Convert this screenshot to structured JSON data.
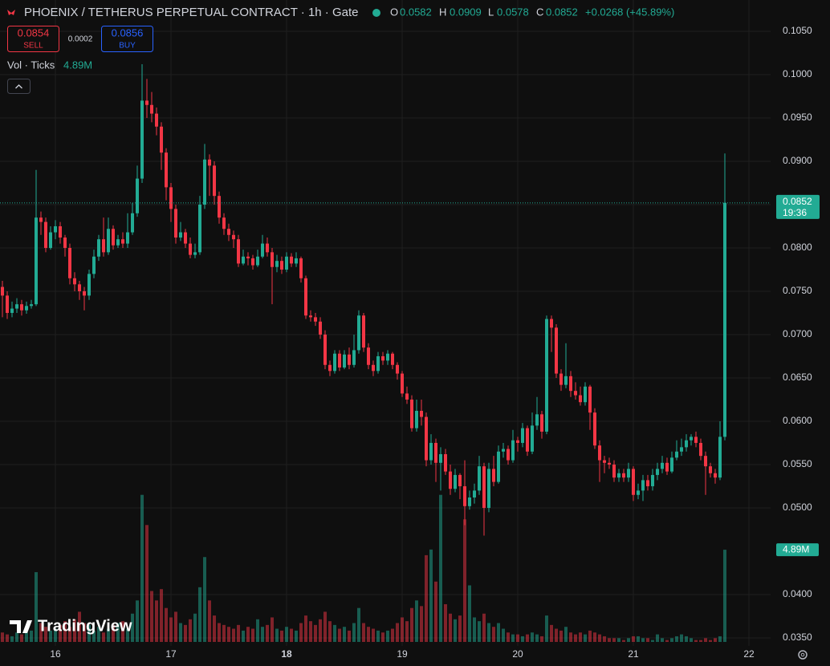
{
  "chart_data": {
    "type": "candlestick",
    "title": "PHOENIX / TETHERUS PERPETUAL CONTRACT · 1h · Gate",
    "ohlc_labels": [
      "O",
      "H",
      "L",
      "C"
    ],
    "change": "+0.0268 (+45.89%)",
    "sell": {
      "price": 0.0854,
      "label": "SELL"
    },
    "spread": 0.0002,
    "buy": {
      "price": 0.0856,
      "label": "BUY"
    },
    "volume_title": "Vol · Ticks",
    "volume_last_label": "4.89M",
    "countdown": "19:36",
    "watermark": "TradingView",
    "up_color": "#22ab94",
    "down_color": "#f23645",
    "grid": true,
    "xlim": [
      -0.5,
      159.5
    ],
    "xticks": [
      {
        "value": 11,
        "label": "16"
      },
      {
        "value": 35,
        "label": "17"
      },
      {
        "value": 59,
        "label": "18"
      },
      {
        "value": 83,
        "label": "19"
      },
      {
        "value": 107,
        "label": "20"
      },
      {
        "value": 131,
        "label": "21"
      },
      {
        "value": 155,
        "label": "22"
      }
    ],
    "ylim": [
      0.03407,
      0.10861
    ],
    "yticks": [
      {
        "value": 0.105,
        "label": "0.1050"
      },
      {
        "value": 0.1,
        "label": "0.1000"
      },
      {
        "value": 0.095,
        "label": "0.0950"
      },
      {
        "value": 0.09,
        "label": "0.0900"
      },
      {
        "value": 0.085,
        "label": "0.0850"
      },
      {
        "value": 0.08,
        "label": "0.0800"
      },
      {
        "value": 0.075,
        "label": "0.0750"
      },
      {
        "value": 0.07,
        "label": "0.0700"
      },
      {
        "value": 0.065,
        "label": "0.0650"
      },
      {
        "value": 0.06,
        "label": "0.0600"
      },
      {
        "value": 0.055,
        "label": "0.0550"
      },
      {
        "value": 0.05,
        "label": "0.0500"
      },
      {
        "value": 0.04,
        "label": "0.0400"
      },
      {
        "value": 0.035,
        "label": "0.0350"
      }
    ],
    "open": [
      0.0755,
      0.0745,
      0.0725,
      0.073,
      0.0735,
      0.0728,
      0.0733,
      0.0735,
      0.0835,
      0.083,
      0.08,
      0.0818,
      0.0825,
      0.0812,
      0.08,
      0.0765,
      0.0758,
      0.075,
      0.0745,
      0.077,
      0.079,
      0.081,
      0.0795,
      0.0822,
      0.0803,
      0.081,
      0.0805,
      0.0818,
      0.084,
      0.088,
      0.097,
      0.0965,
      0.0955,
      0.094,
      0.091,
      0.087,
      0.0845,
      0.0812,
      0.0818,
      0.0805,
      0.0792,
      0.0795,
      0.085,
      0.0902,
      0.0895,
      0.086,
      0.0835,
      0.0822,
      0.0815,
      0.081,
      0.0782,
      0.079,
      0.0788,
      0.078,
      0.079,
      0.0805,
      0.0795,
      0.0778,
      0.0785,
      0.0775,
      0.079,
      0.0782,
      0.0788,
      0.0765,
      0.0722,
      0.072,
      0.0715,
      0.07,
      0.0665,
      0.0658,
      0.0678,
      0.0662,
      0.0677,
      0.0665,
      0.0682,
      0.0722,
      0.0685,
      0.0665,
      0.0658,
      0.0675,
      0.067,
      0.0678,
      0.0665,
      0.0655,
      0.0632,
      0.0625,
      0.0592,
      0.0612,
      0.0605,
      0.0555,
      0.0575,
      0.0552,
      0.0562,
      0.0542,
      0.0522,
      0.0538,
      0.0525,
      0.0502,
      0.0512,
      0.052,
      0.0548,
      0.05,
      0.0545,
      0.053,
      0.0565,
      0.0568,
      0.0555,
      0.0578,
      0.0575,
      0.0592,
      0.0565,
      0.0595,
      0.0608,
      0.0588,
      0.0718,
      0.0708,
      0.0655,
      0.0642,
      0.0652,
      0.0635,
      0.063,
      0.0622,
      0.064,
      0.061,
      0.0572,
      0.0555,
      0.0552,
      0.055,
      0.0535,
      0.054,
      0.0535,
      0.0545,
      0.0515,
      0.052,
      0.0532,
      0.0525,
      0.0538,
      0.0545,
      0.0552,
      0.0542,
      0.0558,
      0.0565,
      0.057,
      0.0578,
      0.0582,
      0.0575,
      0.056,
      0.0548,
      0.054,
      0.0535,
      0.0582
    ],
    "high": [
      0.0762,
      0.075,
      0.0738,
      0.0742,
      0.074,
      0.0738,
      0.074,
      0.089,
      0.0842,
      0.0835,
      0.0825,
      0.0832,
      0.083,
      0.0815,
      0.0805,
      0.0772,
      0.0762,
      0.0755,
      0.0775,
      0.0798,
      0.0815,
      0.0835,
      0.0835,
      0.0826,
      0.0815,
      0.0818,
      0.084,
      0.0852,
      0.0895,
      0.1012,
      0.0995,
      0.098,
      0.0962,
      0.0945,
      0.0915,
      0.0875,
      0.085,
      0.083,
      0.0822,
      0.0812,
      0.0805,
      0.086,
      0.092,
      0.0908,
      0.09,
      0.0865,
      0.084,
      0.0828,
      0.082,
      0.0815,
      0.0798,
      0.0795,
      0.0792,
      0.0798,
      0.0815,
      0.0812,
      0.08,
      0.0792,
      0.079,
      0.0795,
      0.0794,
      0.0795,
      0.079,
      0.0768,
      0.0728,
      0.0725,
      0.072,
      0.0705,
      0.067,
      0.0682,
      0.0682,
      0.0682,
      0.0685,
      0.07,
      0.0728,
      0.0725,
      0.069,
      0.067,
      0.068,
      0.068,
      0.0682,
      0.068,
      0.0668,
      0.0658,
      0.064,
      0.063,
      0.0625,
      0.0625,
      0.061,
      0.0585,
      0.058,
      0.057,
      0.0568,
      0.055,
      0.0545,
      0.054,
      0.0555,
      0.052,
      0.0528,
      0.056,
      0.0552,
      0.0552,
      0.056,
      0.0572,
      0.0575,
      0.0572,
      0.059,
      0.0582,
      0.0598,
      0.0595,
      0.061,
      0.0628,
      0.0612,
      0.0722,
      0.0722,
      0.0712,
      0.066,
      0.069,
      0.0658,
      0.0645,
      0.064,
      0.0645,
      0.0642,
      0.0615,
      0.0578,
      0.056,
      0.0558,
      0.0555,
      0.0545,
      0.0545,
      0.0552,
      0.0548,
      0.0528,
      0.0538,
      0.0538,
      0.0545,
      0.0552,
      0.056,
      0.0558,
      0.0565,
      0.0578,
      0.058,
      0.0585,
      0.0585,
      0.0588,
      0.058,
      0.0565,
      0.0552,
      0.0545,
      0.06,
      0.0909
    ],
    "low": [
      0.072,
      0.0718,
      0.072,
      0.0725,
      0.0722,
      0.0724,
      0.073,
      0.0733,
      0.0815,
      0.0795,
      0.0798,
      0.081,
      0.0805,
      0.079,
      0.0758,
      0.075,
      0.074,
      0.0728,
      0.074,
      0.0765,
      0.0785,
      0.079,
      0.0792,
      0.0798,
      0.08,
      0.08,
      0.08,
      0.0815,
      0.0836,
      0.0875,
      0.095,
      0.0945,
      0.093,
      0.089,
      0.0855,
      0.083,
      0.0805,
      0.0808,
      0.08,
      0.0788,
      0.0788,
      0.0792,
      0.0845,
      0.086,
      0.085,
      0.0828,
      0.0815,
      0.0808,
      0.08,
      0.0778,
      0.078,
      0.078,
      0.0775,
      0.0778,
      0.0788,
      0.079,
      0.0735,
      0.0772,
      0.077,
      0.0772,
      0.0778,
      0.0778,
      0.076,
      0.0718,
      0.0715,
      0.071,
      0.0695,
      0.066,
      0.0652,
      0.0655,
      0.0658,
      0.066,
      0.066,
      0.0662,
      0.0678,
      0.068,
      0.066,
      0.0652,
      0.0655,
      0.0665,
      0.0665,
      0.066,
      0.0648,
      0.0628,
      0.062,
      0.0588,
      0.0588,
      0.0595,
      0.0548,
      0.055,
      0.053,
      0.052,
      0.0538,
      0.0515,
      0.0518,
      0.051,
      0.048,
      0.0498,
      0.0505,
      0.0515,
      0.0468,
      0.0495,
      0.0525,
      0.0528,
      0.0558,
      0.055,
      0.0552,
      0.0565,
      0.057,
      0.056,
      0.0562,
      0.059,
      0.058,
      0.0585,
      0.068,
      0.065,
      0.0635,
      0.0638,
      0.0628,
      0.0625,
      0.0618,
      0.0618,
      0.059,
      0.0568,
      0.053,
      0.054,
      0.0545,
      0.053,
      0.053,
      0.053,
      0.053,
      0.0508,
      0.051,
      0.0508,
      0.052,
      0.052,
      0.0532,
      0.054,
      0.0538,
      0.054,
      0.0555,
      0.056,
      0.0565,
      0.0572,
      0.057,
      0.0555,
      0.0515,
      0.0535,
      0.0528,
      0.0532,
      0.0578
    ],
    "close": [
      0.0745,
      0.0725,
      0.073,
      0.0735,
      0.0728,
      0.0733,
      0.0735,
      0.0835,
      0.083,
      0.08,
      0.0818,
      0.0825,
      0.0812,
      0.08,
      0.0765,
      0.0758,
      0.075,
      0.0745,
      0.077,
      0.079,
      0.081,
      0.0795,
      0.0822,
      0.0803,
      0.081,
      0.0805,
      0.0818,
      0.084,
      0.088,
      0.097,
      0.0965,
      0.0955,
      0.094,
      0.091,
      0.087,
      0.0845,
      0.0812,
      0.0818,
      0.0805,
      0.0792,
      0.0795,
      0.085,
      0.0902,
      0.0895,
      0.086,
      0.0835,
      0.0822,
      0.0815,
      0.081,
      0.0782,
      0.079,
      0.0788,
      0.078,
      0.079,
      0.0805,
      0.0795,
      0.0778,
      0.0785,
      0.0775,
      0.079,
      0.0782,
      0.0788,
      0.0765,
      0.0722,
      0.072,
      0.0715,
      0.07,
      0.0665,
      0.0658,
      0.0678,
      0.0662,
      0.0677,
      0.0665,
      0.0682,
      0.0722,
      0.0685,
      0.0665,
      0.0658,
      0.0675,
      0.067,
      0.0678,
      0.0665,
      0.0655,
      0.0632,
      0.0625,
      0.0592,
      0.0612,
      0.0605,
      0.0555,
      0.0575,
      0.0552,
      0.0562,
      0.0542,
      0.0522,
      0.0538,
      0.0525,
      0.0502,
      0.0512,
      0.052,
      0.0548,
      0.05,
      0.0545,
      0.053,
      0.0565,
      0.0568,
      0.0555,
      0.0578,
      0.0575,
      0.0592,
      0.0565,
      0.0595,
      0.0608,
      0.0588,
      0.0718,
      0.0708,
      0.0655,
      0.0642,
      0.0652,
      0.0635,
      0.063,
      0.0622,
      0.064,
      0.061,
      0.0572,
      0.0555,
      0.0552,
      0.055,
      0.0535,
      0.054,
      0.0535,
      0.0545,
      0.0515,
      0.052,
      0.0532,
      0.0525,
      0.0538,
      0.0545,
      0.0552,
      0.0542,
      0.0558,
      0.0565,
      0.057,
      0.0578,
      0.0582,
      0.0575,
      0.056,
      0.0548,
      0.054,
      0.0535,
      0.0582,
      0.0852
    ],
    "volume": [
      0.5,
      0.4,
      0.3,
      0.5,
      0.4,
      0.5,
      0.6,
      3.7,
      1.0,
      0.8,
      0.6,
      0.7,
      0.9,
      1.1,
      0.8,
      1.2,
      1.6,
      1.0,
      0.9,
      0.6,
      0.8,
      0.5,
      0.7,
      0.9,
      1.0,
      1.1,
      0.7,
      1.5,
      2.2,
      7.8,
      6.2,
      2.7,
      2.2,
      2.8,
      1.8,
      1.3,
      1.6,
      1.0,
      0.9,
      1.2,
      1.5,
      2.9,
      4.5,
      2.2,
      1.4,
      1.0,
      0.9,
      0.8,
      0.7,
      0.9,
      0.6,
      0.8,
      0.7,
      1.2,
      0.8,
      0.9,
      1.3,
      0.7,
      0.6,
      0.8,
      0.7,
      0.6,
      1.0,
      1.4,
      1.1,
      0.9,
      1.2,
      1.6,
      1.1,
      0.9,
      0.7,
      0.8,
      0.6,
      1.0,
      1.8,
      1.0,
      0.8,
      0.7,
      0.6,
      0.5,
      0.6,
      0.7,
      1.0,
      1.3,
      1.1,
      1.8,
      2.2,
      1.9,
      4.6,
      4.9,
      3.2,
      7.8,
      2.0,
      1.5,
      1.2,
      1.4,
      6.5,
      3.0,
      1.3,
      1.1,
      1.5,
      1.0,
      0.8,
      1.0,
      0.7,
      0.5,
      0.4,
      0.4,
      0.3,
      0.4,
      0.5,
      0.4,
      0.3,
      1.4,
      0.9,
      0.7,
      0.6,
      0.8,
      0.5,
      0.4,
      0.5,
      0.4,
      0.6,
      0.5,
      0.4,
      0.3,
      0.2,
      0.2,
      0.2,
      0.1,
      0.2,
      0.3,
      0.3,
      0.2,
      0.2,
      0.1,
      0.4,
      0.2,
      0.1,
      0.2,
      0.3,
      0.4,
      0.3,
      0.2,
      0.1,
      0.1,
      0.2,
      0.1,
      0.2,
      0.3,
      4.89
    ]
  }
}
